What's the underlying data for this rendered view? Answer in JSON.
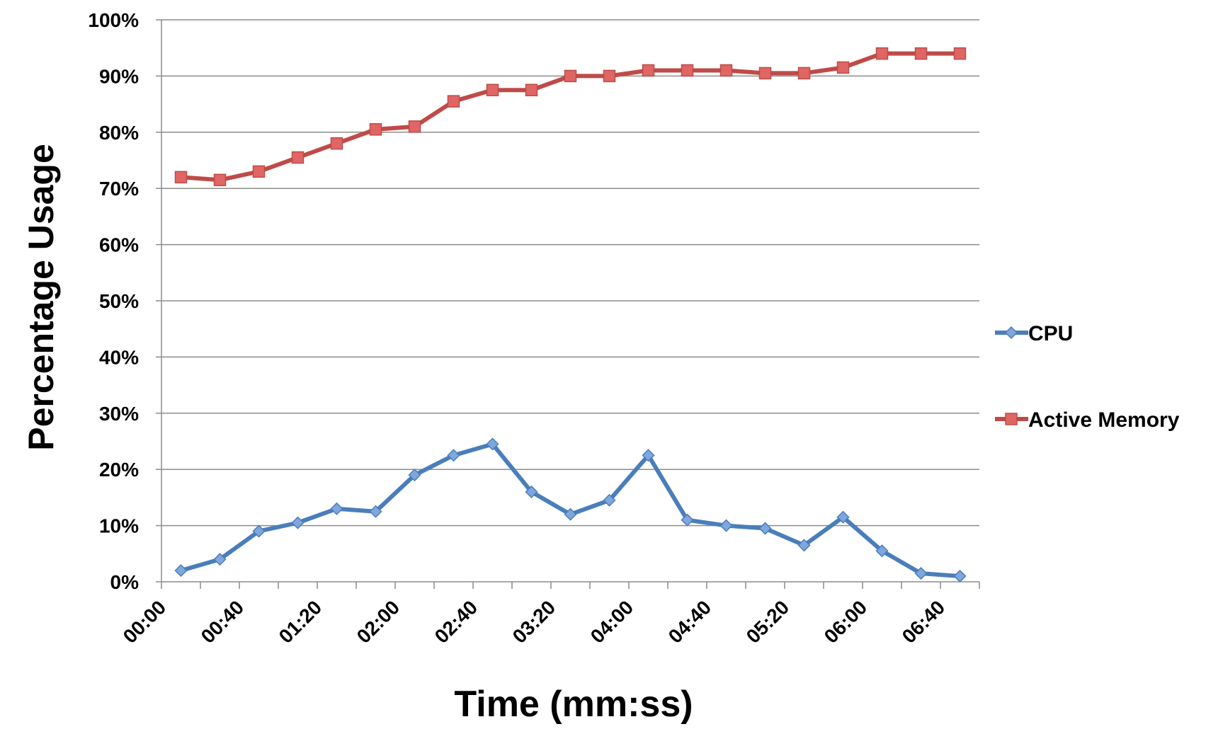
{
  "chart_data": {
    "type": "line",
    "xlabel": "Time (mm:ss)",
    "ylabel": "Percentage Usage",
    "ylim": [
      0,
      100
    ],
    "y_ticks": [
      "0%",
      "10%",
      "20%",
      "30%",
      "40%",
      "50%",
      "60%",
      "70%",
      "80%",
      "90%",
      "100%"
    ],
    "x_tick_labels": [
      "00:00",
      "00:40",
      "01:20",
      "02:00",
      "02:40",
      "03:20",
      "04:00",
      "04:40",
      "05:20",
      "06:00",
      "06:40"
    ],
    "grid": true,
    "legend_position": "right",
    "series": [
      {
        "name": "CPU",
        "color": "#4a7ebb",
        "marker": "diamond",
        "values": [
          2,
          4,
          9,
          10.5,
          13,
          12.5,
          19,
          22.5,
          24.5,
          16,
          12,
          14.5,
          22.5,
          11,
          10,
          9.5,
          6.5,
          11.5,
          5.5,
          1.5,
          1
        ]
      },
      {
        "name": "Active Memory",
        "color": "#be4b48",
        "marker": "square",
        "values": [
          72,
          71.5,
          73,
          75.5,
          78,
          80.5,
          81,
          85.5,
          87.5,
          87.5,
          90,
          90,
          91,
          91,
          91,
          90.5,
          90.5,
          91.5,
          94,
          94,
          94
        ]
      }
    ]
  }
}
